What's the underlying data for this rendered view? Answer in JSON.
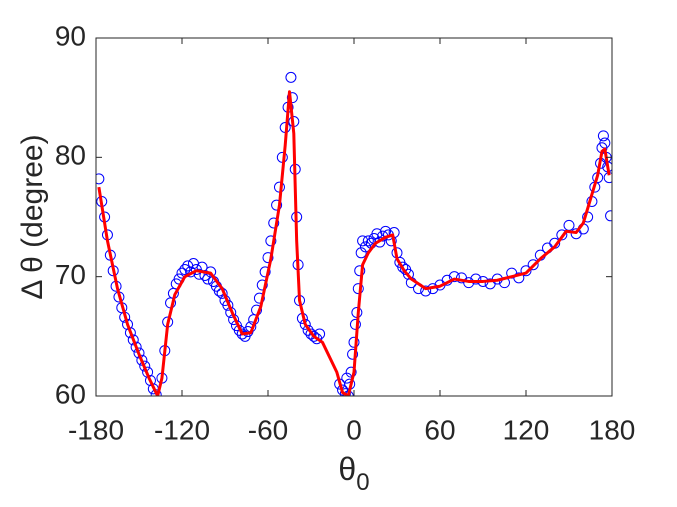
{
  "chart_data": {
    "type": "scatter",
    "y_label": "Δ θ (degree)",
    "x_label": "θ",
    "x_label_subscript": "0",
    "xlim": [
      -180,
      180
    ],
    "ylim": [
      60,
      90
    ],
    "xticks": [
      -180,
      -120,
      -60,
      0,
      60,
      120,
      180
    ],
    "yticks": [
      60,
      70,
      80,
      90
    ],
    "grid": false,
    "series": [
      {
        "type": "scatter",
        "color": "#0000ff",
        "x": [
          -178,
          -176,
          -174,
          -172,
          -170,
          -168,
          -166,
          -164,
          -162,
          -160,
          -158,
          -156,
          -154,
          -152,
          -150,
          -148,
          -146,
          -144,
          -142,
          -140,
          -138,
          -134,
          -132,
          -130,
          -128,
          -126,
          -124,
          -122,
          -120,
          -118,
          -116,
          -114,
          -112,
          -110,
          -108,
          -106,
          -104,
          -102,
          -100,
          -98,
          -96,
          -94,
          -92,
          -90,
          -88,
          -86,
          -84,
          -82,
          -80,
          -78,
          -76,
          -74,
          -72,
          -70,
          -68,
          -66,
          -64,
          -62,
          -60,
          -58,
          -56,
          -54,
          -52,
          -50,
          -48,
          -46,
          -44,
          -43,
          -42,
          -41,
          -40,
          -39,
          -38,
          -36,
          -34,
          -32,
          -30,
          -28,
          -26,
          -24,
          -10,
          -8,
          -6,
          -5,
          -4,
          -3,
          -2,
          -1,
          0,
          1,
          2,
          3,
          4,
          5,
          6,
          8,
          10,
          12,
          14,
          16,
          18,
          20,
          22,
          24,
          26,
          28,
          30,
          32,
          34,
          36,
          38,
          40,
          45,
          50,
          55,
          60,
          65,
          70,
          75,
          80,
          85,
          90,
          95,
          100,
          105,
          110,
          115,
          120,
          125,
          130,
          135,
          140,
          145,
          150,
          155,
          160,
          163,
          166,
          168,
          170,
          172,
          173,
          174,
          175,
          176,
          177,
          178,
          179
        ],
        "values": [
          78.2,
          76.3,
          75,
          73.5,
          71.8,
          70.5,
          69.2,
          68.3,
          67.4,
          66.6,
          66,
          65.3,
          64.7,
          64.1,
          63.6,
          63,
          62.5,
          62,
          61.3,
          60.6,
          60.1,
          61.5,
          63.8,
          66.2,
          67.8,
          68.6,
          69.4,
          69.8,
          70.3,
          70.6,
          70.9,
          70.4,
          71.1,
          70.6,
          70.2,
          70.8,
          70.1,
          69.8,
          70.4,
          69.6,
          69.2,
          68.8,
          68.6,
          68,
          67.6,
          67,
          66.4,
          65.9,
          65.5,
          65.2,
          65,
          65.4,
          65.8,
          66.4,
          67.2,
          68.2,
          69.3,
          70.4,
          71.6,
          73,
          74.5,
          76,
          77.5,
          80,
          82.5,
          84.2,
          86.7,
          85,
          83,
          79,
          75,
          71,
          68,
          66.5,
          66,
          65.5,
          65.2,
          65,
          64.8,
          65.2,
          61,
          60.5,
          60.2,
          61.5,
          60,
          61,
          62,
          63.5,
          64.5,
          66,
          67,
          69,
          70.5,
          72,
          73,
          72.5,
          73,
          72.8,
          73.2,
          73.6,
          72.9,
          73.4,
          73.8,
          73.5,
          73,
          73.7,
          72,
          71.2,
          70.8,
          70.6,
          70.2,
          69.5,
          69,
          68.8,
          69,
          69.3,
          69.7,
          70,
          69.9,
          69.5,
          69.8,
          69.6,
          69.4,
          69.8,
          69.5,
          70.3,
          69.9,
          70.5,
          71,
          71.8,
          72.4,
          72.8,
          73.5,
          74.3,
          73.6,
          74,
          75,
          76.3,
          77.5,
          78.3,
          79.5,
          80.8,
          81.8,
          81.2,
          80,
          79.2,
          78.3,
          75.1
        ]
      },
      {
        "type": "line",
        "color": "#ff0000",
        "x": [
          -178,
          -172,
          -165,
          -158,
          -150,
          -143,
          -137,
          -134,
          -130,
          -125,
          -118,
          -110,
          -100,
          -92,
          -85,
          -78,
          -72,
          -65,
          -58,
          -52,
          -48,
          -45,
          -42,
          -40,
          -38,
          -34,
          -28,
          -22,
          -12,
          -8,
          -4,
          0,
          3,
          6,
          10,
          15,
          22,
          27,
          30,
          35,
          40,
          50,
          60,
          70,
          80,
          90,
          100,
          110,
          120,
          130,
          140,
          148,
          155,
          160,
          165,
          170,
          173,
          175,
          178
        ],
        "values": [
          77.5,
          73,
          69,
          66,
          63.5,
          61.5,
          60,
          61.5,
          66,
          68.5,
          70,
          70.5,
          70.3,
          69,
          67,
          65.2,
          65.3,
          67.5,
          71.5,
          76,
          81,
          85.5,
          82,
          73,
          68,
          66,
          65,
          64.5,
          62,
          60.3,
          60,
          62,
          67,
          71,
          72,
          72.8,
          73.3,
          73.5,
          71.5,
          70.5,
          69.8,
          69,
          69.2,
          69.8,
          69.6,
          69.6,
          69.7,
          70,
          70.3,
          71.5,
          72.5,
          73.8,
          73.7,
          74.5,
          76.5,
          78.5,
          80.5,
          80.7,
          78.5
        ]
      }
    ]
  }
}
